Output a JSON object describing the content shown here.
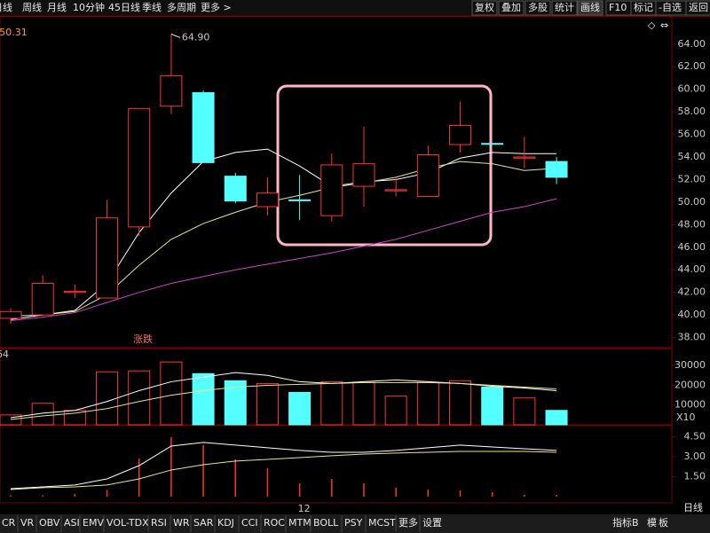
{
  "toolbar": {
    "periods": [
      "日线",
      "周线",
      "月线",
      "10分钟",
      "45日线",
      "季线",
      "多周期",
      "更多 >"
    ],
    "actions": [
      "复权",
      "叠加",
      "多股",
      "统计",
      "画线",
      "F10",
      "标记",
      "-自选",
      "返回"
    ],
    "icons": [
      "◇",
      "⇔"
    ]
  },
  "price_readout": ": 50.31",
  "chart_data": [
    {
      "type": "candlestick",
      "categories": [
        null,
        null,
        null,
        null,
        null,
        null,
        null,
        null,
        null,
        "12",
        null,
        null,
        null,
        null,
        null,
        null,
        null,
        null
      ],
      "open": [
        39.7,
        40.0,
        42.0,
        41.5,
        47.8,
        58.5,
        59.7,
        52.3,
        49.6,
        50.2,
        48.8,
        51.4,
        51.0,
        50.5,
        55.1,
        55.2,
        53.9,
        53.6
      ],
      "high": [
        40.6,
        43.5,
        42.7,
        50.2,
        58.3,
        64.9,
        59.9,
        52.6,
        52.2,
        52.4,
        54.3,
        56.7,
        52.2,
        55.0,
        58.9,
        55.2,
        55.8,
        54.0
      ],
      "low": [
        39.2,
        40.0,
        41.5,
        41.5,
        47.0,
        57.8,
        53.5,
        49.9,
        48.8,
        48.4,
        48.3,
        49.6,
        50.5,
        50.5,
        54.4,
        55.2,
        53.0,
        51.6
      ],
      "close": [
        40.3,
        42.8,
        42.1,
        48.6,
        58.3,
        61.2,
        53.5,
        50.1,
        50.8,
        50.2,
        53.3,
        53.4,
        51.1,
        54.2,
        56.8,
        55.2,
        54.0,
        52.2
      ],
      "up_color": "#ff3232",
      "down_color": "#54ffff",
      "series": [
        {
          "color": "#ffffff",
          "values": [
            39.6,
            40.0,
            40.4,
            42.8,
            47.3,
            50.8,
            53.6,
            54.4,
            54.7,
            53.2,
            51.4,
            51.8,
            52.0,
            52.6,
            53.9,
            54.4,
            54.3,
            54.3
          ]
        },
        {
          "color": "#e6e68c",
          "values": [
            39.9,
            40.0,
            40.3,
            41.8,
            44.4,
            46.7,
            48.1,
            49.1,
            50.0,
            50.6,
            51.3,
            51.7,
            52.2,
            53.0,
            53.6,
            53.4,
            52.8,
            53.0
          ]
        },
        {
          "color": "#cc44cc",
          "values": [
            39.5,
            39.8,
            40.2,
            41.1,
            42.0,
            42.8,
            43.4,
            44.0,
            44.5,
            45.0,
            45.5,
            46.1,
            46.7,
            47.5,
            48.3,
            49.1,
            49.6,
            50.3
          ]
        }
      ],
      "annotations": [
        {
          "text": "64.90",
          "value": 64.9
        }
      ],
      "note": "涨跌",
      "ylim": [
        37.1,
        66.5
      ],
      "yticks": [
        {
          "value": 38,
          "label": "38.00"
        },
        {
          "value": 40,
          "label": "40.00"
        },
        {
          "value": 42,
          "label": "42.00"
        },
        {
          "value": 44,
          "label": "44.00"
        },
        {
          "value": 46,
          "label": "46.00"
        },
        {
          "value": 48,
          "label": "48.00"
        },
        {
          "value": 50,
          "label": "50.00"
        },
        {
          "value": 52,
          "label": "52.00"
        },
        {
          "value": 54,
          "label": "54.00"
        },
        {
          "value": 56,
          "label": "56.00"
        },
        {
          "value": 58,
          "label": "58.00"
        },
        {
          "value": 60,
          "label": "60.00"
        },
        {
          "value": 62,
          "label": "62.00"
        },
        {
          "value": 64,
          "label": "64.00"
        }
      ]
    },
    {
      "type": "bar",
      "title": "64",
      "unit_label": "X10",
      "values": [
        5000,
        10900,
        7300,
        26800,
        27300,
        31800,
        25900,
        22300,
        20900,
        16400,
        21800,
        21400,
        14500,
        21400,
        22300,
        19100,
        13600,
        7300
      ],
      "colors": [
        "#ff3232",
        "#ff3232",
        "#ff3232",
        "#ff3232",
        "#ff3232",
        "#ff3232",
        "#54ffff",
        "#54ffff",
        "#ff3232",
        "#54ffff",
        "#ff3232",
        "#ff3232",
        "#ff3232",
        "#ff3232",
        "#ff3232",
        "#54ffff",
        "#ff3232",
        "#54ffff"
      ],
      "series": [
        {
          "color": "#ffffff",
          "values": [
            3600,
            5900,
            7300,
            11800,
            17300,
            21800,
            24100,
            26400,
            25000,
            21800,
            20900,
            21800,
            22700,
            21800,
            20900,
            19500,
            18600,
            17300
          ]
        },
        {
          "color": "#e6e68c",
          "values": [
            2700,
            4500,
            5900,
            8200,
            11800,
            15000,
            17300,
            19100,
            20000,
            20500,
            20900,
            21400,
            21400,
            21400,
            20900,
            20000,
            19100,
            18200
          ]
        }
      ],
      "ylim": [
        0,
        38600
      ],
      "yticks": [
        10000,
        20000,
        30000
      ]
    },
    {
      "type": "bar",
      "values": [
        0.1,
        0.1,
        0.2,
        0.5,
        2.87,
        4.47,
        3.87,
        2.8,
        2.13,
        1.0,
        1.33,
        1.0,
        0.67,
        0.53,
        0.47,
        0.33,
        0.13,
        0.13
      ],
      "color": "#ff3232",
      "series": [
        {
          "color": "#ffffff",
          "values": [
            0.6,
            0.73,
            0.87,
            1.33,
            2.33,
            3.8,
            4.07,
            3.87,
            3.67,
            3.47,
            3.33,
            3.33,
            3.47,
            3.67,
            3.87,
            3.73,
            3.6,
            3.47
          ]
        },
        {
          "color": "#e6e68c",
          "values": [
            0.53,
            0.67,
            0.73,
            0.87,
            1.33,
            2.0,
            2.4,
            2.67,
            2.8,
            2.93,
            3.07,
            3.2,
            3.27,
            3.33,
            3.4,
            3.4,
            3.4,
            3.33
          ]
        }
      ],
      "ylim": [
        -0.47,
        5.33
      ],
      "yticks": [
        {
          "value": 1.5,
          "label": "1.50"
        },
        {
          "value": 3,
          "label": "3.00"
        },
        {
          "value": 4.5,
          "label": "4.50"
        }
      ]
    }
  ],
  "period_label": "日线",
  "bottom_tabs": [
    "CR",
    "VR",
    "OBV",
    "ASI",
    "EMV",
    "VOL-TDX",
    "RSI",
    "WR",
    "SAR",
    "KDJ",
    "CCI",
    "ROC",
    "MTM",
    "BOLL",
    "PSY",
    "MCST",
    "更多",
    "设置"
  ],
  "bottom_right": [
    "指标B",
    "模",
    "板"
  ]
}
